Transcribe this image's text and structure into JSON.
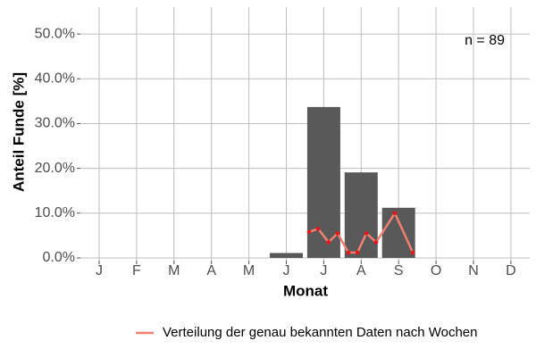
{
  "chart_data": {
    "type": "bar",
    "categories": [
      "J",
      "F",
      "M",
      "A",
      "M",
      "J",
      "J",
      "A",
      "S",
      "O",
      "N",
      "D"
    ],
    "values": [
      0,
      0,
      0,
      0,
      0,
      1.1,
      33.7,
      19.1,
      11.2,
      0,
      0,
      0
    ],
    "color": "#595959",
    "x_label": "Monat",
    "y_label": "Anteil Funde [%]",
    "annotation": "n = 89",
    "ylim": [
      -0.6,
      56
    ],
    "yticks": [
      {
        "value": 0,
        "label": "0.0%"
      },
      {
        "value": 10,
        "label": "10.0%"
      },
      {
        "value": 20,
        "label": "20.0%"
      },
      {
        "value": 30,
        "label": "30.0%"
      },
      {
        "value": 40,
        "label": "40.0%"
      },
      {
        "value": 50,
        "label": "50.0%"
      }
    ],
    "grid": true,
    "legend": "bottom",
    "series": [
      {
        "name": "Verteilung der genau bekannten Daten nach Wochen",
        "type": "line",
        "color": "#f08070",
        "x": [
          6.61,
          6.85,
          7.13,
          7.37,
          7.66,
          7.9,
          8.14,
          8.4,
          8.9,
          9.38
        ],
        "values": [
          5.8,
          6.5,
          3.5,
          5.5,
          1.2,
          1.2,
          5.5,
          3.5,
          10,
          1.2
        ]
      }
    ]
  }
}
